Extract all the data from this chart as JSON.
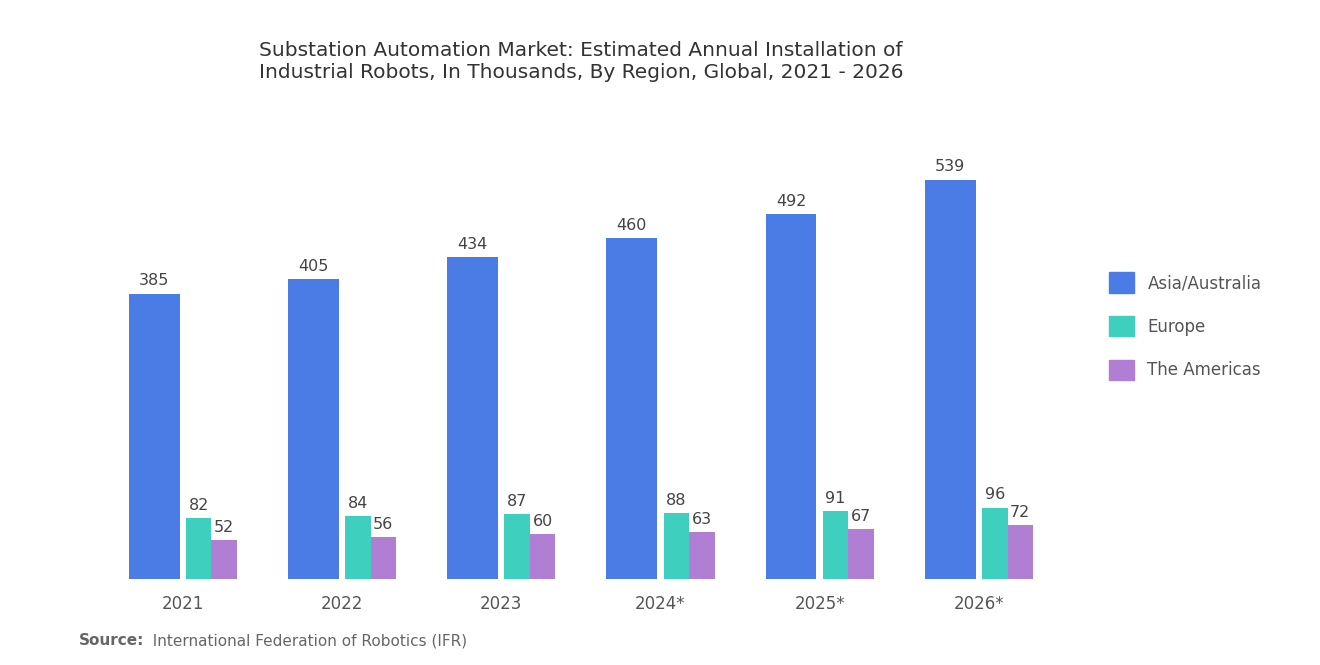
{
  "title": "Substation Automation Market: Estimated Annual Installation of\nIndustrial Robots, In Thousands, By Region, Global, 2021 - 2026",
  "categories": [
    "2021",
    "2022",
    "2023",
    "2024*",
    "2025*",
    "2026*"
  ],
  "asia_australia": [
    385,
    405,
    434,
    460,
    492,
    539
  ],
  "europe": [
    82,
    84,
    87,
    88,
    91,
    96
  ],
  "americas": [
    52,
    56,
    60,
    63,
    67,
    72
  ],
  "color_asia": "#4B7BE5",
  "color_europe": "#3ECFBF",
  "color_americas": "#B07FD4",
  "legend_labels": [
    "Asia/Australia",
    "Europe",
    "The Americas"
  ],
  "source_bold": "Source:",
  "source_rest": "  International Federation of Robotics (IFR)",
  "background_color": "#FFFFFF",
  "asia_bar_width": 0.32,
  "small_bar_width": 0.16,
  "ylim": [
    0,
    620
  ],
  "title_fontsize": 14.5,
  "label_fontsize": 11.5,
  "tick_fontsize": 12,
  "legend_fontsize": 12,
  "source_fontsize": 11
}
